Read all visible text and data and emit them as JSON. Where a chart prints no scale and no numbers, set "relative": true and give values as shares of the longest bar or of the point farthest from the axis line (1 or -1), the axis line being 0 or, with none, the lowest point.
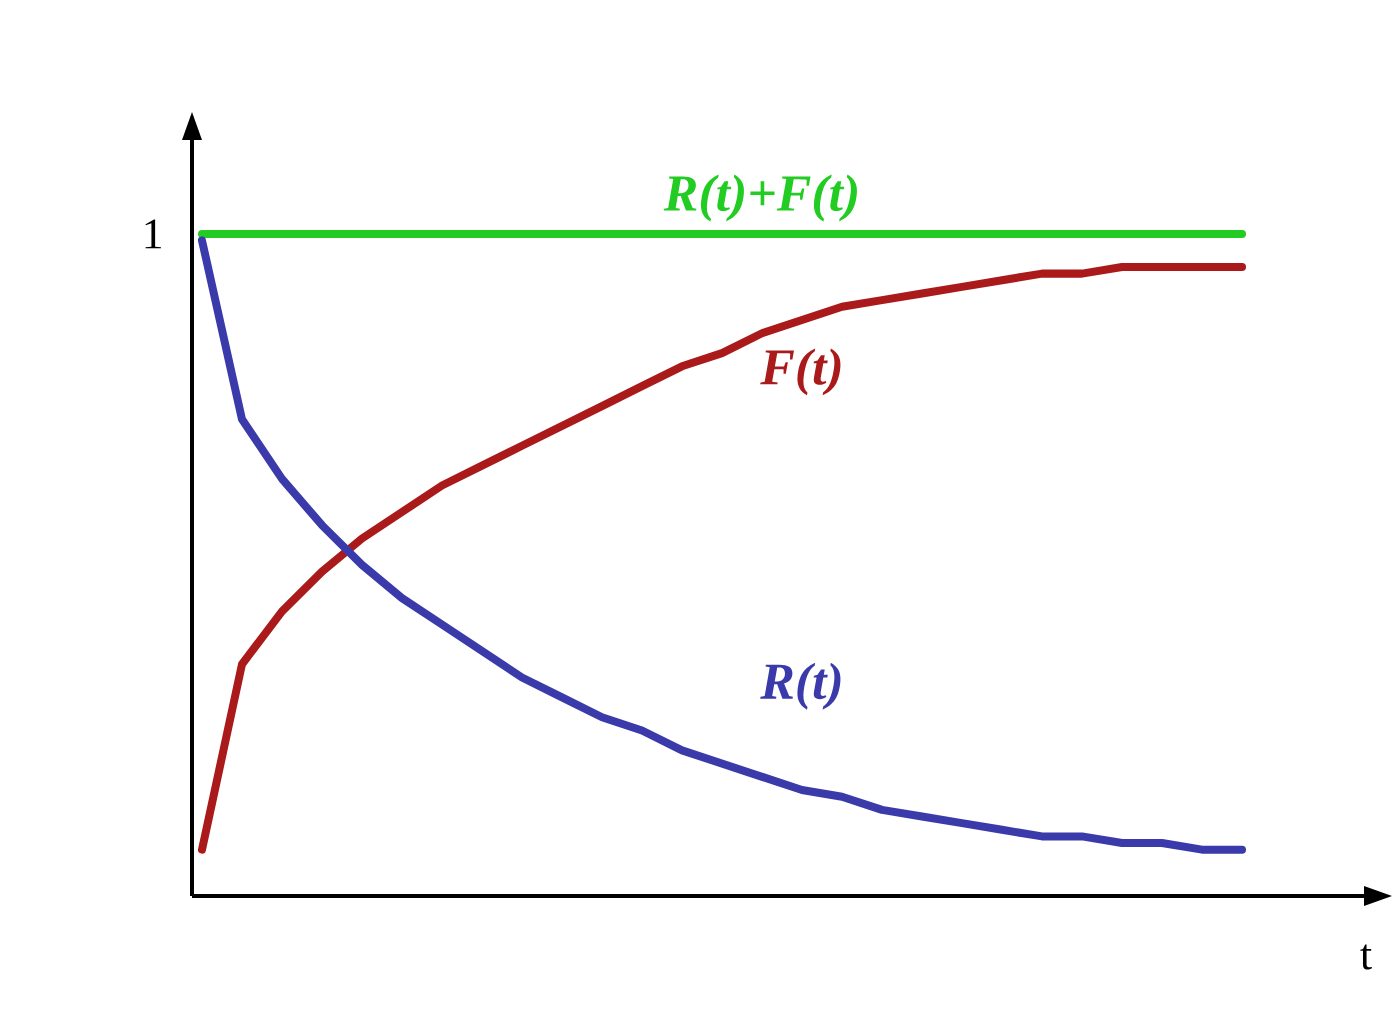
{
  "chart_data": {
    "type": "line",
    "relative": true,
    "xlabel": "t",
    "categories": [
      null,
      null,
      null,
      null,
      null,
      null,
      null,
      null,
      null,
      null,
      null,
      null,
      null,
      null,
      null,
      null,
      null,
      null,
      null,
      null,
      null,
      null,
      null,
      null,
      null,
      null,
      null
    ],
    "annotations": [
      "1"
    ],
    "series": [
      {
        "name": "R(t)+F(t)",
        "color": "#22cc22",
        "values": [
          1,
          1,
          1,
          1,
          1,
          1,
          1,
          1,
          1,
          1,
          1,
          1,
          1,
          1,
          1,
          1,
          1,
          1,
          1,
          1,
          1,
          1,
          1,
          1,
          1,
          1,
          1
        ]
      },
      {
        "name": "F(t)",
        "color": "#aa1a1a",
        "values": [
          0.07,
          0.35,
          0.43,
          0.49,
          0.54,
          0.58,
          0.62,
          0.65,
          0.68,
          0.71,
          0.74,
          0.77,
          0.8,
          0.82,
          0.85,
          0.87,
          0.89,
          0.9,
          0.91,
          0.92,
          0.93,
          0.94,
          0.94,
          0.95,
          0.95,
          0.95,
          0.95
        ]
      },
      {
        "name": "R(t)",
        "color": "#3a3aaa",
        "values": [
          0.99,
          0.72,
          0.63,
          0.56,
          0.5,
          0.45,
          0.41,
          0.37,
          0.33,
          0.3,
          0.27,
          0.25,
          0.22,
          0.2,
          0.18,
          0.16,
          0.15,
          0.13,
          0.12,
          0.11,
          0.1,
          0.09,
          0.09,
          0.08,
          0.08,
          0.07,
          0.07
        ]
      }
    ]
  }
}
